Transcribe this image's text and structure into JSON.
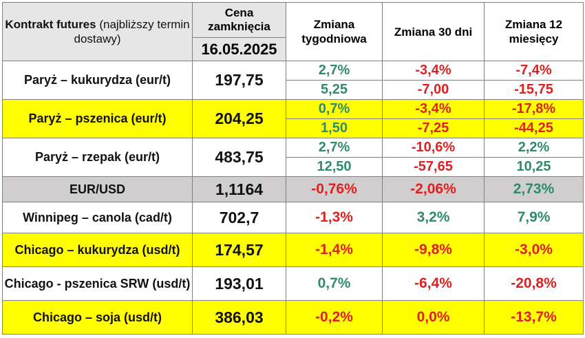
{
  "header": {
    "contract_bold": "Kontrakt futures",
    "contract_rest": "(najbliższy termin dostawy)",
    "price_label": "Cena zamknięcia",
    "date": "16.05.2025",
    "weekly": "Zmiana tygodniowa",
    "d30": "Zmiana 30 dni",
    "m12": "Zmiana 12 miesięcy"
  },
  "rows": [
    {
      "name": "Paryż – kukurydza  (eur/t)",
      "price": "197,75",
      "weekly_pct": "2,7%",
      "weekly_abs": "5,25",
      "d30_pct": "-3,4%",
      "d30_abs": "-7,00",
      "m12_pct": "-7,4%",
      "m12_abs": "-15,75"
    },
    {
      "name": "Paryż – pszenica (eur/t)",
      "price": "204,25",
      "weekly_pct": "0,7%",
      "weekly_abs": "1,50",
      "d30_pct": "-3,4%",
      "d30_abs": "-7,25",
      "m12_pct": "-17,8%",
      "m12_abs": "-44,25"
    },
    {
      "name": "Paryż – rzepak (eur/t)",
      "price": "483,75",
      "weekly_pct": "2,7%",
      "weekly_abs": "12,50",
      "d30_pct": "-10,6%",
      "d30_abs": "-57,65",
      "m12_pct": "2,2%",
      "m12_abs": "10,25"
    },
    {
      "name": "EUR/USD",
      "price": "1,1164",
      "weekly": "-0,76%",
      "d30": "-2,06%",
      "m12": "2,73%"
    },
    {
      "name": "Winnipeg – canola (cad/t)",
      "price": "702,7",
      "weekly": "-1,3%",
      "d30": "3,2%",
      "m12": "7,9%"
    },
    {
      "name": "Chicago – kukurydza (usd/t)",
      "price": "174,57",
      "weekly": "-1,4%",
      "d30": "-9,8%",
      "m12": "-3,0%"
    },
    {
      "name": "Chicago - pszenica SRW (usd/t)",
      "price": "193,01",
      "weekly": "0,7%",
      "d30": "-6,4%",
      "m12": "-20,8%"
    },
    {
      "name": "Chicago – soja (usd/t)",
      "price": "386,03",
      "weekly": "-0,2%",
      "d30": "0,0%",
      "m12": "-13,7%"
    }
  ],
  "colors": {
    "positive": "#2e8b6e",
    "negative": "#e02020",
    "highlight": "#ffff00",
    "gray": "#d0cece",
    "header_gray": "#e7e6e6"
  }
}
